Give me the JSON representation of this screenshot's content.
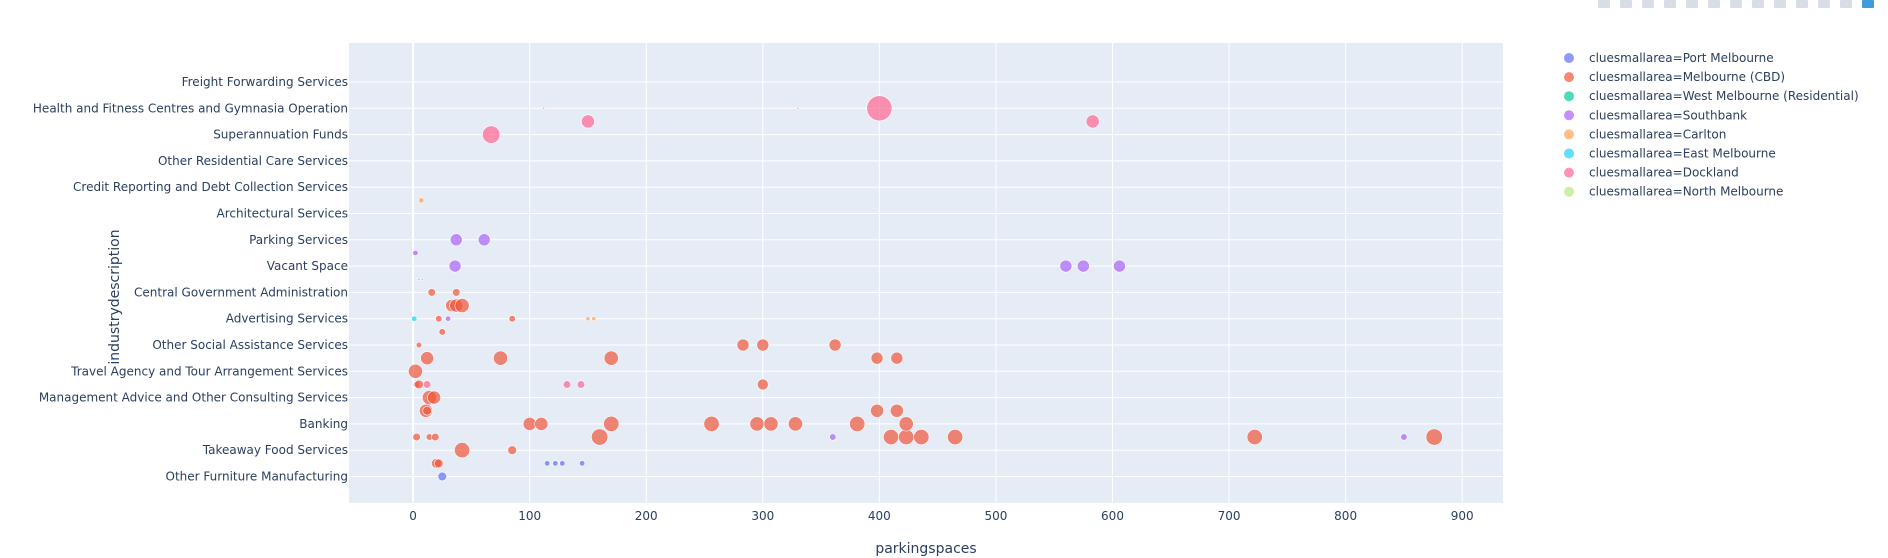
{
  "chart_data": {
    "type": "scatter",
    "xlabel": "parkingspaces",
    "ylabel": "industrydescription",
    "xlim": [
      -55,
      935
    ],
    "xticks": [
      0,
      100,
      200,
      300,
      400,
      500,
      600,
      700,
      800,
      900
    ],
    "categories": [
      "Freight Forwarding Services",
      "Health and Fitness Centres and Gymnasia Operation",
      "Superannuation Funds",
      "Other Residential Care Services",
      "Credit Reporting and Debt Collection Services",
      "Architectural Services",
      "Parking Services",
      "Vacant Space",
      "Central Government Administration",
      "Advertising Services",
      "Other Social Assistance Services",
      "Travel Agency and Tour Arrangement Services",
      "Management Advice and Other Consulting Services",
      "Banking",
      "Takeaway Food Services",
      "Other Furniture Manufacturing"
    ],
    "legend_position": "top-right",
    "series": [
      {
        "name": "cluesmallarea=Port Melbourne",
        "color": "#636efa",
        "points": [
          [
            25,
            15.0,
            8
          ],
          [
            115,
            14.5,
            5
          ],
          [
            122,
            14.5,
            5
          ],
          [
            128,
            14.5,
            5
          ],
          [
            145,
            14.5,
            5
          ]
        ]
      },
      {
        "name": "cluesmallarea=Melbourne (CBD)",
        "color": "#ef553b",
        "points": [
          [
            20,
            14.5,
            9
          ],
          [
            22,
            14.5,
            8
          ],
          [
            42,
            14.0,
            14
          ],
          [
            85,
            14.0,
            8
          ],
          [
            3,
            13.5,
            7
          ],
          [
            14,
            13.5,
            6
          ],
          [
            19,
            13.5,
            7
          ],
          [
            160,
            13.5,
            15
          ],
          [
            410,
            13.5,
            14
          ],
          [
            423,
            13.5,
            14
          ],
          [
            436,
            13.5,
            14
          ],
          [
            465,
            13.5,
            14
          ],
          [
            722,
            13.5,
            14
          ],
          [
            876,
            13.5,
            15
          ],
          [
            100,
            13.0,
            12
          ],
          [
            110,
            13.0,
            12
          ],
          [
            170,
            13.0,
            14
          ],
          [
            256,
            13.0,
            14
          ],
          [
            295,
            13.0,
            13
          ],
          [
            307,
            13.0,
            13
          ],
          [
            328,
            13.0,
            13
          ],
          [
            381,
            13.0,
            14
          ],
          [
            423,
            13.0,
            13
          ],
          [
            11,
            12.5,
            12
          ],
          [
            398,
            12.5,
            12
          ],
          [
            415,
            12.5,
            12
          ],
          [
            12,
            12.5,
            8
          ],
          [
            14,
            12.0,
            13
          ],
          [
            18,
            12.0,
            12
          ],
          [
            3,
            11.5,
            6
          ],
          [
            5,
            11.5,
            8
          ],
          [
            300,
            11.5,
            10
          ],
          [
            2,
            11.0,
            13
          ],
          [
            12,
            10.5,
            12
          ],
          [
            5,
            10.0,
            5
          ],
          [
            75,
            10.5,
            13
          ],
          [
            170,
            10.5,
            13
          ],
          [
            398,
            10.5,
            11
          ],
          [
            415,
            10.5,
            11
          ],
          [
            283,
            10.0,
            11
          ],
          [
            300,
            10.0,
            11
          ],
          [
            362,
            10.0,
            11
          ],
          [
            25,
            9.5,
            6
          ],
          [
            85,
            9.0,
            6
          ],
          [
            22,
            9.0,
            6
          ],
          [
            33,
            8.5,
            11
          ],
          [
            37,
            8.5,
            12
          ],
          [
            42,
            8.5,
            13
          ],
          [
            16,
            8.0,
            7
          ],
          [
            37,
            8.0,
            7
          ]
        ]
      },
      {
        "name": "cluesmallarea=West Melbourne (Residential)",
        "color": "#00cc96",
        "points": []
      },
      {
        "name": "cluesmallarea=Southbank",
        "color": "#ab63fa",
        "points": [
          [
            2,
            6.5,
            5
          ],
          [
            37,
            6.0,
            11
          ],
          [
            61,
            6.0,
            11
          ],
          [
            36,
            7.0,
            11
          ],
          [
            560,
            7.0,
            11
          ],
          [
            575,
            7.0,
            11
          ],
          [
            606,
            7.0,
            11
          ],
          [
            30,
            9.0,
            5
          ],
          [
            360,
            13.5,
            6
          ],
          [
            850,
            13.5,
            6
          ]
        ]
      },
      {
        "name": "cluesmallarea=Carlton",
        "color": "#ffa15a",
        "points": [
          [
            7,
            4.5,
            5
          ],
          [
            150,
            9.0,
            4
          ],
          [
            155,
            9.0,
            4
          ]
        ]
      },
      {
        "name": "cluesmallarea=East Melbourne",
        "color": "#19d3f3",
        "points": [
          [
            1,
            9.0,
            5
          ],
          [
            5,
            7.5,
            2
          ],
          [
            8,
            7.5,
            2
          ]
        ]
      },
      {
        "name": "cluesmallarea=Dockland",
        "color": "#ff6692",
        "points": [
          [
            400,
            1.0,
            23
          ],
          [
            150,
            1.5,
            12
          ],
          [
            583,
            1.5,
            12
          ],
          [
            67,
            2.0,
            16
          ],
          [
            112,
            1.0,
            2
          ],
          [
            330,
            1.0,
            2
          ],
          [
            132,
            11.5,
            7
          ],
          [
            144,
            11.5,
            7
          ],
          [
            12,
            11.5,
            7
          ]
        ]
      },
      {
        "name": "cluesmallarea=North Melbourne",
        "color": "#b6e880",
        "points": []
      }
    ]
  }
}
